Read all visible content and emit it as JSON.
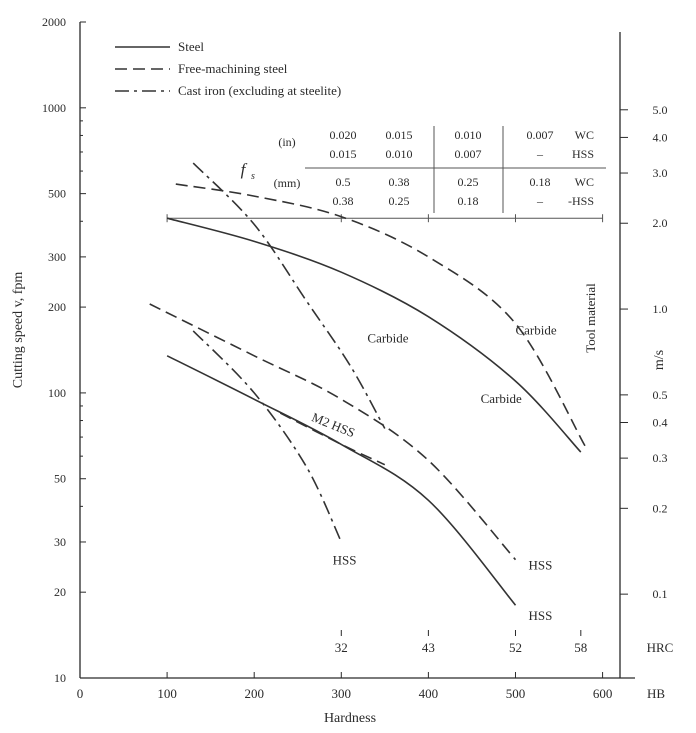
{
  "chart_data": {
    "type": "line",
    "xlabel": "Hardness",
    "x_unit": "HB",
    "xlim": [
      0,
      620
    ],
    "x_ticks": [
      0,
      100,
      200,
      300,
      400,
      500,
      600
    ],
    "ylabel": "Cutting speed v, fpm",
    "y_scale": "log",
    "ylim": [
      10,
      2000
    ],
    "y_ticks": [
      10,
      20,
      30,
      50,
      100,
      200,
      300,
      500,
      1000,
      2000
    ],
    "y_right_label": "m/s",
    "y_right_ticks": [
      "0.1",
      "0.2",
      "0.3",
      "0.4",
      "0.5",
      "1.0",
      "2.0",
      "3.0",
      "4.0",
      "5.0"
    ],
    "y_right_tick_values_mps": [
      0.1,
      0.2,
      0.3,
      0.4,
      0.5,
      1.0,
      2.0,
      3.0,
      4.0,
      5.0
    ],
    "hrc_label": "HRC",
    "hrc_ticks": [
      {
        "label": "32",
        "hb": 300
      },
      {
        "label": "43",
        "hb": 400
      },
      {
        "label": "52",
        "hb": 500
      },
      {
        "label": "58",
        "hb": 575
      }
    ],
    "tool_material_label": "Tool material",
    "legend": [
      {
        "name": "Steel",
        "dash": "solid"
      },
      {
        "name": "Free-machining steel",
        "dash": "dashed"
      },
      {
        "name": "Cast iron (excluding at steelite)",
        "dash": "dashdot"
      }
    ],
    "feed_table": {
      "symbol": "f",
      "subscript": "s",
      "rows": [
        {
          "unit": "(in)",
          "values": [
            "0.020",
            "0.015",
            "0.010",
            "0.007"
          ],
          "tool": "WC"
        },
        {
          "unit": "",
          "values": [
            "0.015",
            "0.010",
            "0.007",
            "–"
          ],
          "tool": "HSS"
        },
        {
          "unit": "(mm)",
          "values": [
            "0.5",
            "0.38",
            "0.25",
            "0.18"
          ],
          "tool": "WC"
        },
        {
          "unit": "",
          "values": [
            "0.38",
            "0.25",
            "0.18",
            "–"
          ],
          "tool": "-HSS"
        }
      ]
    },
    "feed_marker_line": {
      "x": [
        100,
        600
      ],
      "y": 410
    },
    "series": [
      {
        "label": "Carbide",
        "group": "steel-carbide",
        "dash": "solid",
        "points": [
          [
            100,
            410
          ],
          [
            200,
            340
          ],
          [
            300,
            265
          ],
          [
            400,
            185
          ],
          [
            500,
            110
          ],
          [
            575,
            62
          ]
        ]
      },
      {
        "label": "Carbide",
        "group": "free-machining-carbide",
        "dash": "dashed",
        "points": [
          [
            110,
            540
          ],
          [
            200,
            490
          ],
          [
            300,
            415
          ],
          [
            400,
            300
          ],
          [
            500,
            175
          ],
          [
            580,
            65
          ]
        ]
      },
      {
        "label": "Carbide",
        "group": "cast-iron-carbide",
        "dash": "dashdot",
        "points": [
          [
            130,
            640
          ],
          [
            200,
            390
          ],
          [
            260,
            210
          ],
          [
            310,
            125
          ],
          [
            350,
            75
          ]
        ]
      },
      {
        "label": "HSS",
        "group": "steel-hss",
        "dash": "solid",
        "points": [
          [
            100,
            135
          ],
          [
            200,
            95
          ],
          [
            300,
            66
          ],
          [
            400,
            42
          ],
          [
            500,
            18
          ]
        ]
      },
      {
        "label": "HSS",
        "group": "free-machining-hss",
        "dash": "dashed",
        "points": [
          [
            80,
            205
          ],
          [
            200,
            135
          ],
          [
            300,
            95
          ],
          [
            400,
            58
          ],
          [
            500,
            26
          ]
        ]
      },
      {
        "label": "HSS",
        "group": "cast-iron-hss",
        "dash": "dashdot",
        "points": [
          [
            130,
            165
          ],
          [
            200,
            100
          ],
          [
            260,
            55
          ],
          [
            300,
            30
          ]
        ]
      },
      {
        "label": "M2 HSS",
        "group": "m2-hss",
        "dash": "dashed",
        "points": [
          [
            230,
            85
          ],
          [
            300,
            66
          ],
          [
            350,
            56
          ]
        ]
      }
    ],
    "curve_labels": [
      {
        "text": "Carbide",
        "x": 330,
        "y": 150
      },
      {
        "text": "Carbide",
        "x": 500,
        "y": 160
      },
      {
        "text": "Carbide",
        "x": 460,
        "y": 92
      },
      {
        "text": "M2 HSS",
        "x": 265,
        "y": 80
      },
      {
        "text": "HSS",
        "x": 290,
        "y": 25
      },
      {
        "text": "HSS",
        "x": 515,
        "y": 24
      },
      {
        "text": "HSS",
        "x": 515,
        "y": 16
      }
    ]
  }
}
